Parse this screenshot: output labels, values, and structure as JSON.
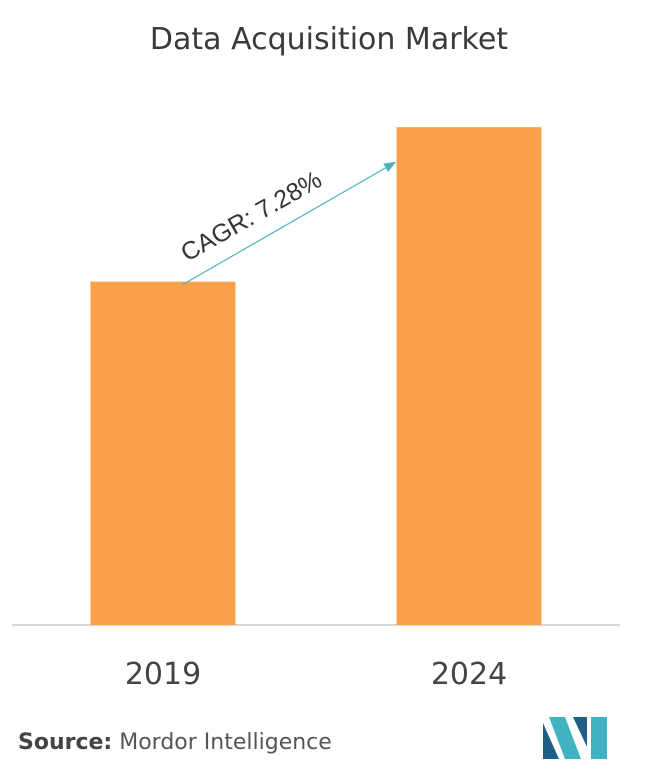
{
  "title": "Data Acquisition Market",
  "source": {
    "label": "Source:",
    "value": "Mordor Intelligence"
  },
  "colors": {
    "bar": "#FBA04A",
    "arrow": "#47B3BC",
    "axis": "#cccccc",
    "logo_dark": "#1e5f86",
    "logo_light": "#3fb3c2"
  },
  "chart_data": {
    "type": "bar",
    "categories": [
      "2019",
      "2024"
    ],
    "values": [
      1.0,
      1.45
    ],
    "ylim": [
      0,
      1.5
    ],
    "annotation": "CAGR: 7.28%",
    "grid": false,
    "title": "Data Acquisition Market"
  }
}
